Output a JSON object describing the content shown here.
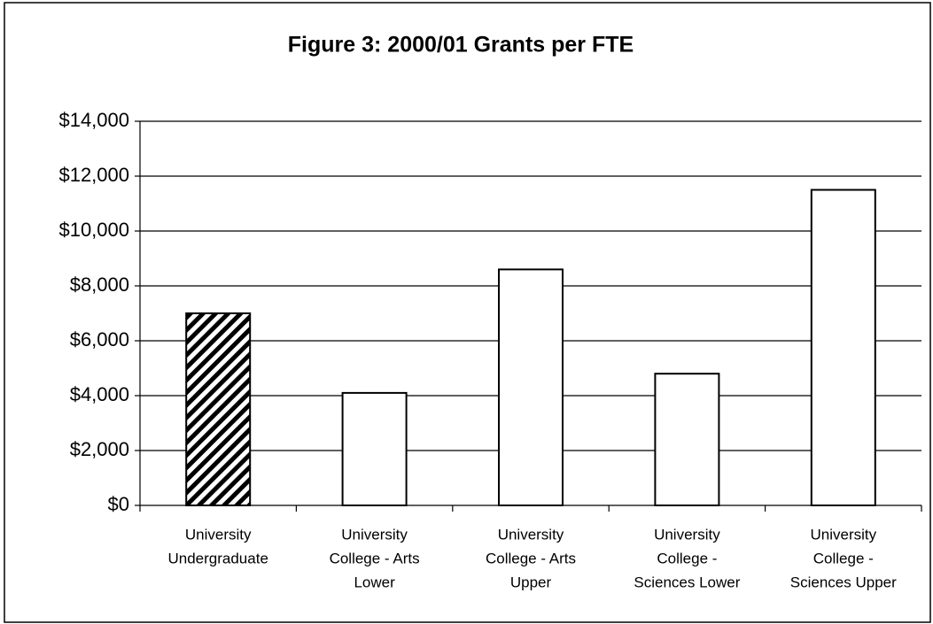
{
  "chart_data": {
    "type": "bar",
    "title": "Figure 3: 2000/01 Grants per FTE",
    "categories": [
      [
        "University",
        "Undergraduate"
      ],
      [
        "University",
        "College - Arts",
        "Lower"
      ],
      [
        "University",
        "College - Arts",
        "Upper"
      ],
      [
        "University",
        "College -",
        "Sciences Lower"
      ],
      [
        "University",
        "College -",
        "Sciences Upper"
      ]
    ],
    "values": [
      7000,
      4100,
      8600,
      4800,
      11500
    ],
    "color": "#ffffff",
    "hatched": [
      true,
      false,
      false,
      false,
      false
    ],
    "ylim": [
      0,
      14000
    ],
    "yticks": [
      {
        "value": 0,
        "label": "$0"
      },
      {
        "value": 2000,
        "label": "$2,000"
      },
      {
        "value": 4000,
        "label": "$4,000"
      },
      {
        "value": 6000,
        "label": "$6,000"
      },
      {
        "value": 8000,
        "label": "$8,000"
      },
      {
        "value": 10000,
        "label": "$10,000"
      },
      {
        "value": 12000,
        "label": "$12,000"
      },
      {
        "value": 14000,
        "label": "$14,000"
      }
    ],
    "grid": true
  }
}
